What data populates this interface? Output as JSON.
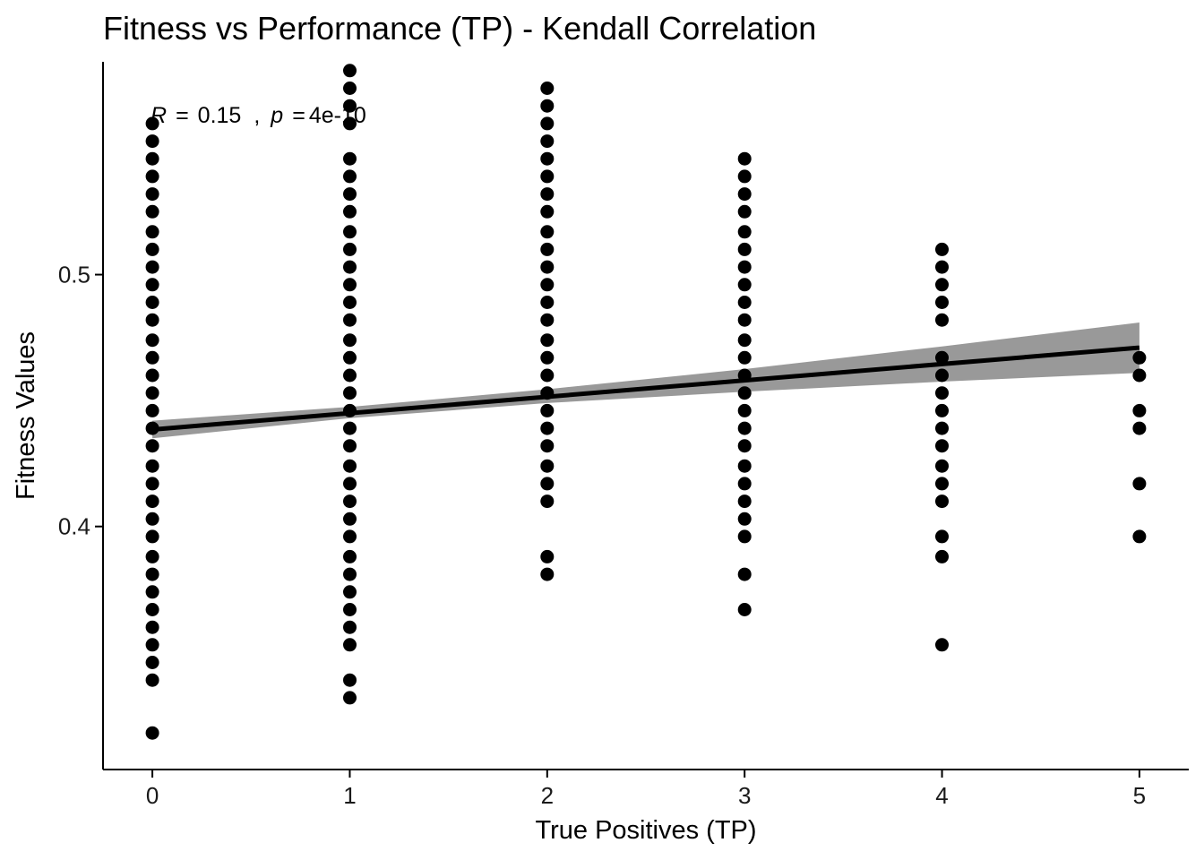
{
  "chart_data": {
    "type": "scatter",
    "title": "Fitness vs Performance (TP) - Kendall Correlation",
    "xlabel": "True Positives (TP)",
    "ylabel": "Fitness Values",
    "xlim": [
      -0.25,
      5.25
    ],
    "ylim": [
      0.3035,
      0.5845
    ],
    "x_ticks": [
      0,
      1,
      2,
      3,
      4,
      5
    ],
    "y_ticks": [
      0.4,
      0.5
    ],
    "y_tick_labels": [
      "0.4",
      "0.5"
    ],
    "grid": false,
    "legend": "none",
    "point_color": "#000000",
    "line_color": "#000000",
    "band_color": "#999999",
    "annotation": {
      "r_symbol": "R",
      "r_value": "0.15",
      "separator": ",",
      "p_symbol": "p",
      "equals": "=",
      "p_value": "4e-10"
    },
    "series": [
      {
        "x": 0,
        "y": [
          0.318,
          0.339,
          0.346,
          0.353,
          0.36,
          0.367,
          0.374,
          0.381,
          0.388,
          0.396,
          0.403,
          0.41,
          0.417,
          0.424,
          0.432,
          0.439,
          0.446,
          0.453,
          0.46,
          0.467,
          0.474,
          0.482,
          0.489,
          0.496,
          0.503,
          0.51,
          0.517,
          0.525,
          0.532,
          0.539,
          0.546,
          0.553,
          0.56
        ]
      },
      {
        "x": 1,
        "y": [
          0.332,
          0.339,
          0.353,
          0.36,
          0.367,
          0.374,
          0.381,
          0.388,
          0.396,
          0.403,
          0.41,
          0.417,
          0.424,
          0.432,
          0.439,
          0.446,
          0.453,
          0.46,
          0.467,
          0.474,
          0.482,
          0.489,
          0.496,
          0.503,
          0.51,
          0.517,
          0.525,
          0.532,
          0.539,
          0.546,
          0.56,
          0.567,
          0.574,
          0.581
        ]
      },
      {
        "x": 2,
        "y": [
          0.381,
          0.388,
          0.41,
          0.417,
          0.424,
          0.432,
          0.439,
          0.446,
          0.453,
          0.46,
          0.467,
          0.474,
          0.482,
          0.489,
          0.496,
          0.503,
          0.51,
          0.517,
          0.525,
          0.532,
          0.539,
          0.546,
          0.553,
          0.56,
          0.567,
          0.574
        ]
      },
      {
        "x": 3,
        "y": [
          0.367,
          0.381,
          0.396,
          0.403,
          0.41,
          0.417,
          0.424,
          0.432,
          0.439,
          0.446,
          0.453,
          0.46,
          0.467,
          0.474,
          0.482,
          0.489,
          0.496,
          0.503,
          0.51,
          0.517,
          0.525,
          0.532,
          0.539,
          0.546
        ]
      },
      {
        "x": 4,
        "y": [
          0.353,
          0.388,
          0.396,
          0.41,
          0.417,
          0.424,
          0.432,
          0.439,
          0.446,
          0.453,
          0.46,
          0.467,
          0.482,
          0.489,
          0.496,
          0.503,
          0.51
        ]
      },
      {
        "x": 5,
        "y": [
          0.396,
          0.417,
          0.439,
          0.446,
          0.46,
          0.467
        ]
      }
    ],
    "regression": {
      "intercept": 0.4385,
      "slope": 0.0065
    },
    "confidence_band": {
      "x": [
        0,
        1,
        2,
        3,
        4,
        5
      ],
      "lower": [
        0.435,
        0.443,
        0.449,
        0.4535,
        0.4575,
        0.461
      ],
      "upper": [
        0.442,
        0.4475,
        0.4545,
        0.4625,
        0.4715,
        0.481
      ]
    }
  }
}
